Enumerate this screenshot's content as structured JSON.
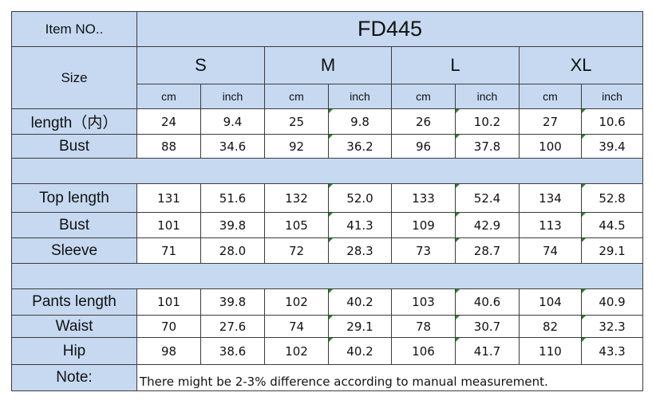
{
  "header": {
    "item_label": "Item NO..",
    "item_value": "FD445",
    "size_label": "Size",
    "sizes": [
      "S",
      "M",
      "L",
      "XL"
    ],
    "unit_cm": "cm",
    "unit_inch": "inch"
  },
  "section1": [
    {
      "label": "length（内）",
      "values": [
        "24",
        "9.4",
        "25",
        "9.8",
        "26",
        "10.2",
        "27",
        "10.6"
      ]
    },
    {
      "label": "Bust",
      "values": [
        "88",
        "34.6",
        "92",
        "36.2",
        "96",
        "37.8",
        "100",
        "39.4"
      ]
    }
  ],
  "section2": [
    {
      "label": "Top  length",
      "values": [
        "131",
        "51.6",
        "132",
        "52.0",
        "133",
        "52.4",
        "134",
        "52.8"
      ]
    },
    {
      "label": "Bust",
      "values": [
        "101",
        "39.8",
        "105",
        "41.3",
        "109",
        "42.9",
        "113",
        "44.5"
      ]
    },
    {
      "label": "Sleeve",
      "values": [
        "71",
        "28.0",
        "72",
        "28.3",
        "73",
        "28.7",
        "74",
        "29.1"
      ]
    }
  ],
  "section3": [
    {
      "label": "Pants length",
      "values": [
        "101",
        "39.8",
        "102",
        "40.2",
        "103",
        "40.6",
        "104",
        "40.9"
      ]
    },
    {
      "label": "Waist",
      "values": [
        "70",
        "27.6",
        "74",
        "29.1",
        "78",
        "30.7",
        "82",
        "32.3"
      ]
    },
    {
      "label": "Hip",
      "values": [
        "98",
        "38.6",
        "102",
        "40.2",
        "106",
        "41.7",
        "110",
        "43.3"
      ]
    }
  ],
  "note": {
    "label": "Note:",
    "text": "There might be 2-3% difference according to manual measurement."
  },
  "colors": {
    "header_fill": "#c6d9f1",
    "grid_line": "#3c3c3c",
    "cell_marker": "#1f8a1f"
  }
}
